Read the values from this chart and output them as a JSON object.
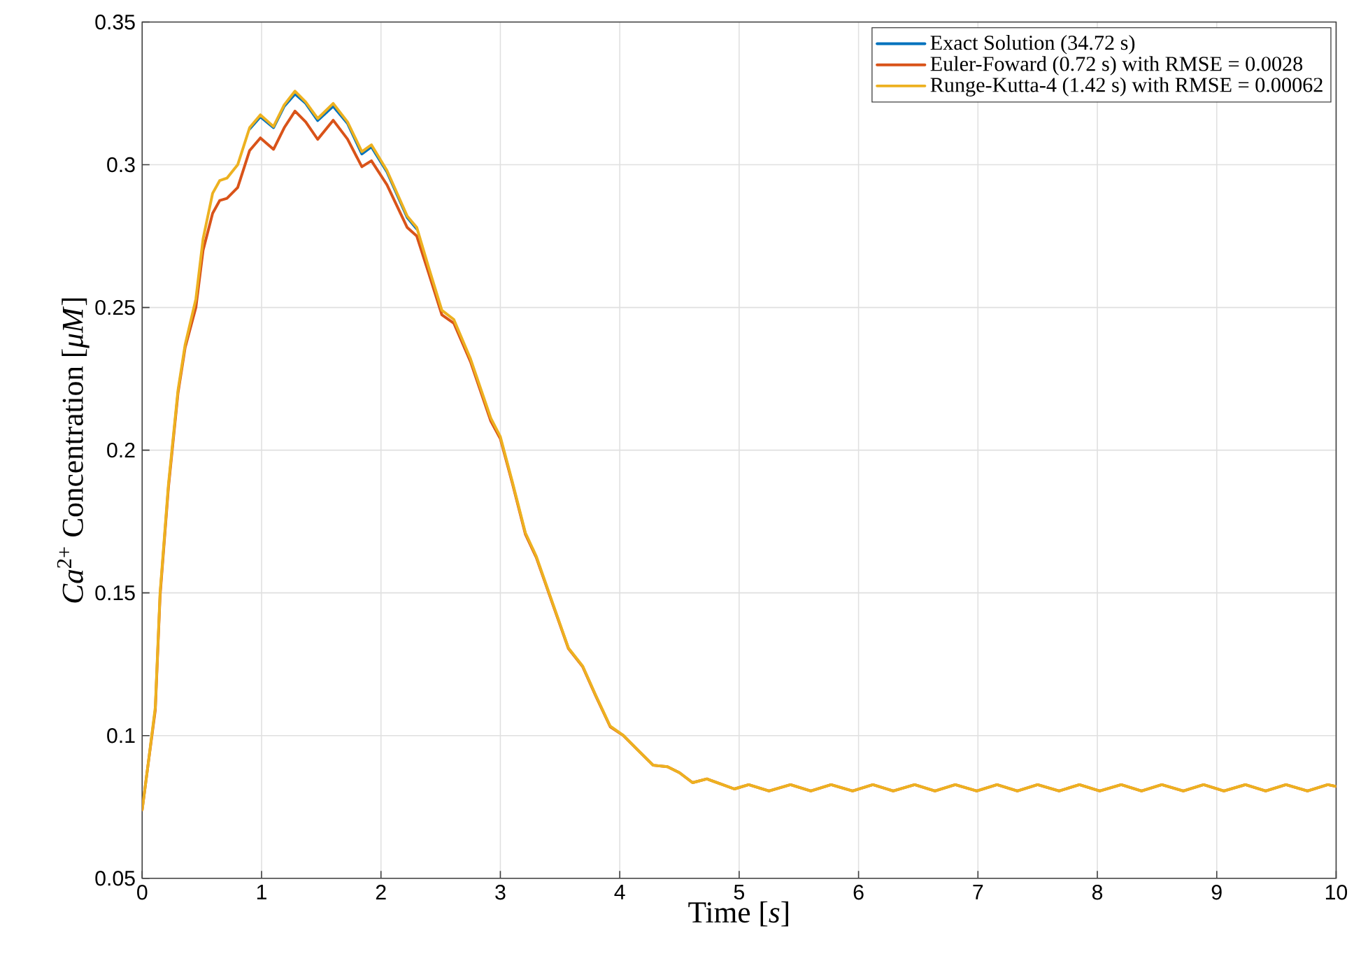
{
  "chart_data": {
    "type": "line",
    "xlabel": "Time [*s*]",
    "ylabel": "*Ca*$^{2+}$ Concentration [*μM*]",
    "xlim": [
      0,
      10
    ],
    "ylim": [
      0.05,
      0.35
    ],
    "xticks": [
      0,
      1,
      2,
      3,
      4,
      5,
      6,
      7,
      8,
      9,
      10
    ],
    "yticks": [
      0.05,
      0.1,
      0.15,
      0.2,
      0.25,
      0.3,
      0.35
    ],
    "grid": true,
    "legend": "top right",
    "line_style": "solid",
    "marker": "none",
    "x": [
      0,
      0.05,
      0.11,
      0.15,
      0.22,
      0.3,
      0.36,
      0.45,
      0.51,
      0.59,
      0.65,
      0.71,
      0.8,
      0.9,
      0.99,
      1.1,
      1.19,
      1.28,
      1.37,
      1.47,
      1.6,
      1.72,
      1.84,
      1.92,
      2.05,
      2.22,
      2.3,
      2.4,
      2.51,
      2.61,
      2.75,
      2.92,
      3.0,
      3.1,
      3.21,
      3.3,
      3.45,
      3.57,
      3.69,
      3.8,
      3.92,
      4.03,
      4.15,
      4.28,
      4.4,
      4.5,
      4.61,
      4.73,
      4.85,
      4.96,
      5.08,
      5.25,
      5.43,
      5.6,
      5.77,
      5.95,
      6.12,
      6.29,
      6.47,
      6.64,
      6.81,
      6.99,
      7.16,
      7.33,
      7.5,
      7.68,
      7.85,
      8.02,
      8.2,
      8.37,
      8.54,
      8.72,
      8.89,
      9.06,
      9.24,
      9.41,
      9.58,
      9.76,
      9.93,
      10
    ],
    "series": [
      {
        "name": "Exact Solution (34.72 s)",
        "color": "#0072bd",
        "values": [
          null,
          null,
          null,
          null,
          null,
          null,
          null,
          null,
          null,
          null,
          null,
          null,
          null,
          0.3125,
          0.3168,
          0.313,
          0.3205,
          0.3248,
          0.3215,
          0.3155,
          0.3205,
          0.3145,
          0.3038,
          0.3063,
          0.2975,
          0.2815,
          0.2775,
          null,
          null,
          null,
          null,
          null,
          null,
          null,
          null,
          null,
          null,
          null,
          null,
          null,
          null,
          null,
          null,
          null,
          null,
          null,
          null,
          null,
          null,
          null,
          null,
          null,
          null,
          null,
          null,
          null,
          null,
          null,
          null,
          null,
          null,
          null,
          null,
          null,
          null,
          null,
          null,
          null,
          null,
          null,
          null,
          null,
          null,
          null,
          null,
          null,
          null,
          null,
          null,
          null
        ]
      },
      {
        "name": "Euler-Foward (0.72 s) with RMSE = 0.0028",
        "color": "#d95319",
        "values": [
          0.074,
          0.09,
          0.109,
          0.149,
          0.187,
          0.22,
          0.236,
          0.25,
          0.27,
          0.283,
          0.2875,
          0.2882,
          0.292,
          0.305,
          0.3094,
          0.3054,
          0.313,
          0.3188,
          0.315,
          0.3089,
          0.3156,
          0.309,
          0.2993,
          0.3014,
          0.293,
          0.278,
          0.275,
          0.262,
          0.2474,
          0.2445,
          0.231,
          0.2102,
          0.204,
          0.1885,
          0.1705,
          0.1625,
          0.1447,
          0.1305,
          0.1241,
          0.1138,
          0.1031,
          0.1,
          0.095,
          0.0896,
          0.0891,
          0.087,
          0.0835,
          0.0848,
          0.083,
          0.0813,
          0.0828,
          0.0806,
          0.0828,
          0.0806,
          0.0828,
          0.0806,
          0.0828,
          0.0806,
          0.0828,
          0.0806,
          0.0828,
          0.0806,
          0.0828,
          0.0806,
          0.0828,
          0.0806,
          0.0828,
          0.0806,
          0.0828,
          0.0806,
          0.0828,
          0.0806,
          0.0828,
          0.0806,
          0.0828,
          0.0806,
          0.0828,
          0.0806,
          0.0828,
          0.0822
        ]
      },
      {
        "name": "Runge-Kutta-4 (1.42 s) with RMSE = 0.00062",
        "color": "#edb120",
        "values": [
          0.074,
          0.09,
          0.11,
          0.15,
          0.188,
          0.221,
          0.237,
          0.253,
          0.274,
          0.29,
          0.2945,
          0.2953,
          0.3,
          0.313,
          0.3175,
          0.3134,
          0.321,
          0.3258,
          0.322,
          0.3162,
          0.3215,
          0.315,
          0.3046,
          0.307,
          0.298,
          0.282,
          0.278,
          0.264,
          0.249,
          0.2458,
          0.232,
          0.2112,
          0.2047,
          0.189,
          0.171,
          0.1629,
          0.145,
          0.1307,
          0.1243,
          0.114,
          0.1033,
          0.1001,
          0.095,
          0.0896,
          0.0891,
          0.087,
          0.0835,
          0.0848,
          0.083,
          0.0813,
          0.0828,
          0.0806,
          0.0828,
          0.0806,
          0.0828,
          0.0806,
          0.0828,
          0.0806,
          0.0828,
          0.0806,
          0.0828,
          0.0806,
          0.0828,
          0.0806,
          0.0828,
          0.0806,
          0.0828,
          0.0806,
          0.0828,
          0.0806,
          0.0828,
          0.0806,
          0.0828,
          0.0806,
          0.0828,
          0.0806,
          0.0828,
          0.0806,
          0.0828,
          0.0822
        ]
      }
    ]
  }
}
